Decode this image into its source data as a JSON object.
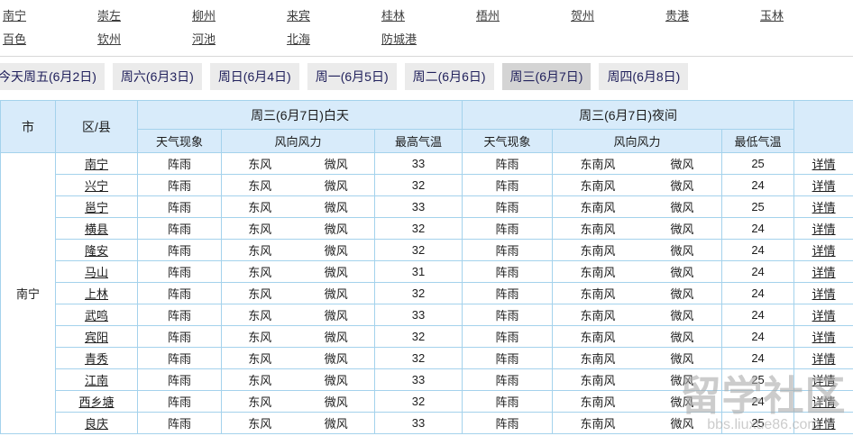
{
  "city_nav": {
    "links": [
      "南宁",
      "崇左",
      "柳州",
      "来宾",
      "桂林",
      "梧州",
      "贺州",
      "贵港",
      "玉林",
      "百色",
      "钦州",
      "河池",
      "北海",
      "防城港"
    ]
  },
  "tabs": {
    "items": [
      {
        "label": "今天周五(6月2日)",
        "active": false
      },
      {
        "label": "周六(6月3日)",
        "active": false
      },
      {
        "label": "周日(6月4日)",
        "active": false
      },
      {
        "label": "周一(6月5日)",
        "active": false
      },
      {
        "label": "周二(6月6日)",
        "active": false
      },
      {
        "label": "周三(6月7日)",
        "active": true
      },
      {
        "label": "周四(6月8日)",
        "active": false
      }
    ]
  },
  "table": {
    "city": "南宁",
    "detail_label": "详情",
    "header": {
      "city": "市",
      "district": "区/县",
      "day_group": "周三(6月7日)白天",
      "night_group": "周三(6月7日)夜间",
      "weather": "天气现象",
      "wind": "风向风力",
      "high_temp": "最高气温",
      "low_temp": "最低气温",
      "detail": ""
    },
    "rows": [
      {
        "district": "南宁",
        "day_weather": "阵雨",
        "day_wind_dir": "东风",
        "day_wind_force": "微风",
        "high": "33",
        "night_weather": "阵雨",
        "night_wind_dir": "东南风",
        "night_wind_force": "微风",
        "low": "25"
      },
      {
        "district": "兴宁",
        "day_weather": "阵雨",
        "day_wind_dir": "东风",
        "day_wind_force": "微风",
        "high": "32",
        "night_weather": "阵雨",
        "night_wind_dir": "东南风",
        "night_wind_force": "微风",
        "low": "24"
      },
      {
        "district": "邕宁",
        "day_weather": "阵雨",
        "day_wind_dir": "东风",
        "day_wind_force": "微风",
        "high": "33",
        "night_weather": "阵雨",
        "night_wind_dir": "东南风",
        "night_wind_force": "微风",
        "low": "25"
      },
      {
        "district": "横县",
        "day_weather": "阵雨",
        "day_wind_dir": "东风",
        "day_wind_force": "微风",
        "high": "32",
        "night_weather": "阵雨",
        "night_wind_dir": "东南风",
        "night_wind_force": "微风",
        "low": "24"
      },
      {
        "district": "隆安",
        "day_weather": "阵雨",
        "day_wind_dir": "东风",
        "day_wind_force": "微风",
        "high": "32",
        "night_weather": "阵雨",
        "night_wind_dir": "东南风",
        "night_wind_force": "微风",
        "low": "24"
      },
      {
        "district": "马山",
        "day_weather": "阵雨",
        "day_wind_dir": "东风",
        "day_wind_force": "微风",
        "high": "31",
        "night_weather": "阵雨",
        "night_wind_dir": "东南风",
        "night_wind_force": "微风",
        "low": "24"
      },
      {
        "district": "上林",
        "day_weather": "阵雨",
        "day_wind_dir": "东风",
        "day_wind_force": "微风",
        "high": "32",
        "night_weather": "阵雨",
        "night_wind_dir": "东南风",
        "night_wind_force": "微风",
        "low": "24"
      },
      {
        "district": "武鸣",
        "day_weather": "阵雨",
        "day_wind_dir": "东风",
        "day_wind_force": "微风",
        "high": "33",
        "night_weather": "阵雨",
        "night_wind_dir": "东南风",
        "night_wind_force": "微风",
        "low": "24"
      },
      {
        "district": "宾阳",
        "day_weather": "阵雨",
        "day_wind_dir": "东风",
        "day_wind_force": "微风",
        "high": "32",
        "night_weather": "阵雨",
        "night_wind_dir": "东南风",
        "night_wind_force": "微风",
        "low": "24"
      },
      {
        "district": "青秀",
        "day_weather": "阵雨",
        "day_wind_dir": "东风",
        "day_wind_force": "微风",
        "high": "32",
        "night_weather": "阵雨",
        "night_wind_dir": "东南风",
        "night_wind_force": "微风",
        "low": "24"
      },
      {
        "district": "江南",
        "day_weather": "阵雨",
        "day_wind_dir": "东风",
        "day_wind_force": "微风",
        "high": "33",
        "night_weather": "阵雨",
        "night_wind_dir": "东南风",
        "night_wind_force": "微风",
        "low": "25"
      },
      {
        "district": "西乡塘",
        "day_weather": "阵雨",
        "day_wind_dir": "东风",
        "day_wind_force": "微风",
        "high": "32",
        "night_weather": "阵雨",
        "night_wind_dir": "东南风",
        "night_wind_force": "微风",
        "low": "24"
      },
      {
        "district": "良庆",
        "day_weather": "阵雨",
        "day_wind_dir": "东风",
        "day_wind_force": "微风",
        "high": "33",
        "night_weather": "阵雨",
        "night_wind_dir": "东南风",
        "night_wind_force": "微风",
        "low": "25"
      }
    ]
  },
  "watermark": {
    "title": "留学社区",
    "url": "bbs.liuxue86.com"
  },
  "colors": {
    "header_bg": "#d8ebfa",
    "table_border": "#a4d2ec",
    "tab_bg": "#ebebeb",
    "tab_active_bg": "#d4d4d4",
    "tab_text": "#21215c"
  }
}
